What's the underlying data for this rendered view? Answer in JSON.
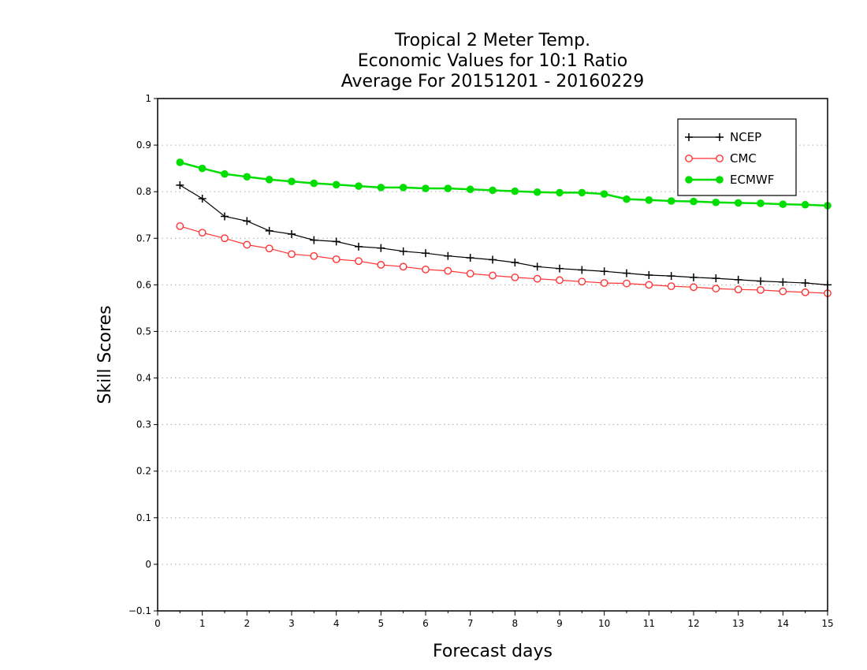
{
  "chart_data": {
    "type": "line",
    "title": [
      "Tropical 2 Meter Temp.",
      "Economic Values for 10:1 Ratio",
      "Average For 20151201 - 20160229"
    ],
    "xlabel": "Forecast days",
    "ylabel": "Skill Scores",
    "xlim": [
      0,
      15
    ],
    "ylim": [
      -0.1,
      1
    ],
    "xticks": [
      "0",
      "1",
      "2",
      "3",
      "4",
      "5",
      "6",
      "7",
      "8",
      "9",
      "10",
      "11",
      "12",
      "13",
      "14",
      "15"
    ],
    "yticks": [
      "−0.1",
      "0",
      "0.1",
      "0.2",
      "0.3",
      "0.4",
      "0.5",
      "0.6",
      "0.7",
      "0.8",
      "0.9",
      "1"
    ],
    "grid": "horizontal dotted",
    "legend_position": "top-right",
    "x": [
      0.5,
      1,
      1.5,
      2,
      2.5,
      3,
      3.5,
      4,
      4.5,
      5,
      5.5,
      6,
      6.5,
      7,
      7.5,
      8,
      8.5,
      9,
      9.5,
      10,
      10.5,
      11,
      11.5,
      12,
      12.5,
      13,
      13.5,
      14,
      14.5,
      15
    ],
    "series": [
      {
        "name": "NCEP",
        "color": "#000000",
        "marker": "plus",
        "values": [
          0.814,
          0.785,
          0.747,
          0.737,
          0.716,
          0.709,
          0.696,
          0.693,
          0.682,
          0.679,
          0.672,
          0.668,
          0.662,
          0.658,
          0.654,
          0.648,
          0.639,
          0.635,
          0.632,
          0.629,
          0.625,
          0.621,
          0.619,
          0.616,
          0.614,
          0.611,
          0.608,
          0.606,
          0.604,
          0.6
        ]
      },
      {
        "name": "CMC",
        "color": "#ff3333",
        "marker": "open-circle",
        "values": [
          0.726,
          0.712,
          0.7,
          0.686,
          0.678,
          0.666,
          0.662,
          0.655,
          0.651,
          0.643,
          0.639,
          0.633,
          0.63,
          0.624,
          0.62,
          0.616,
          0.613,
          0.61,
          0.607,
          0.604,
          0.603,
          0.6,
          0.597,
          0.595,
          0.592,
          0.59,
          0.589,
          0.586,
          0.584,
          0.582
        ]
      },
      {
        "name": "ECMWF",
        "color": "#00dd00",
        "marker": "filled-circle",
        "values": [
          0.863,
          0.85,
          0.838,
          0.832,
          0.826,
          0.822,
          0.818,
          0.815,
          0.812,
          0.809,
          0.809,
          0.807,
          0.807,
          0.805,
          0.803,
          0.801,
          0.799,
          0.798,
          0.798,
          0.795,
          0.784,
          0.782,
          0.78,
          0.779,
          0.777,
          0.776,
          0.775,
          0.773,
          0.772,
          0.77
        ]
      }
    ]
  }
}
